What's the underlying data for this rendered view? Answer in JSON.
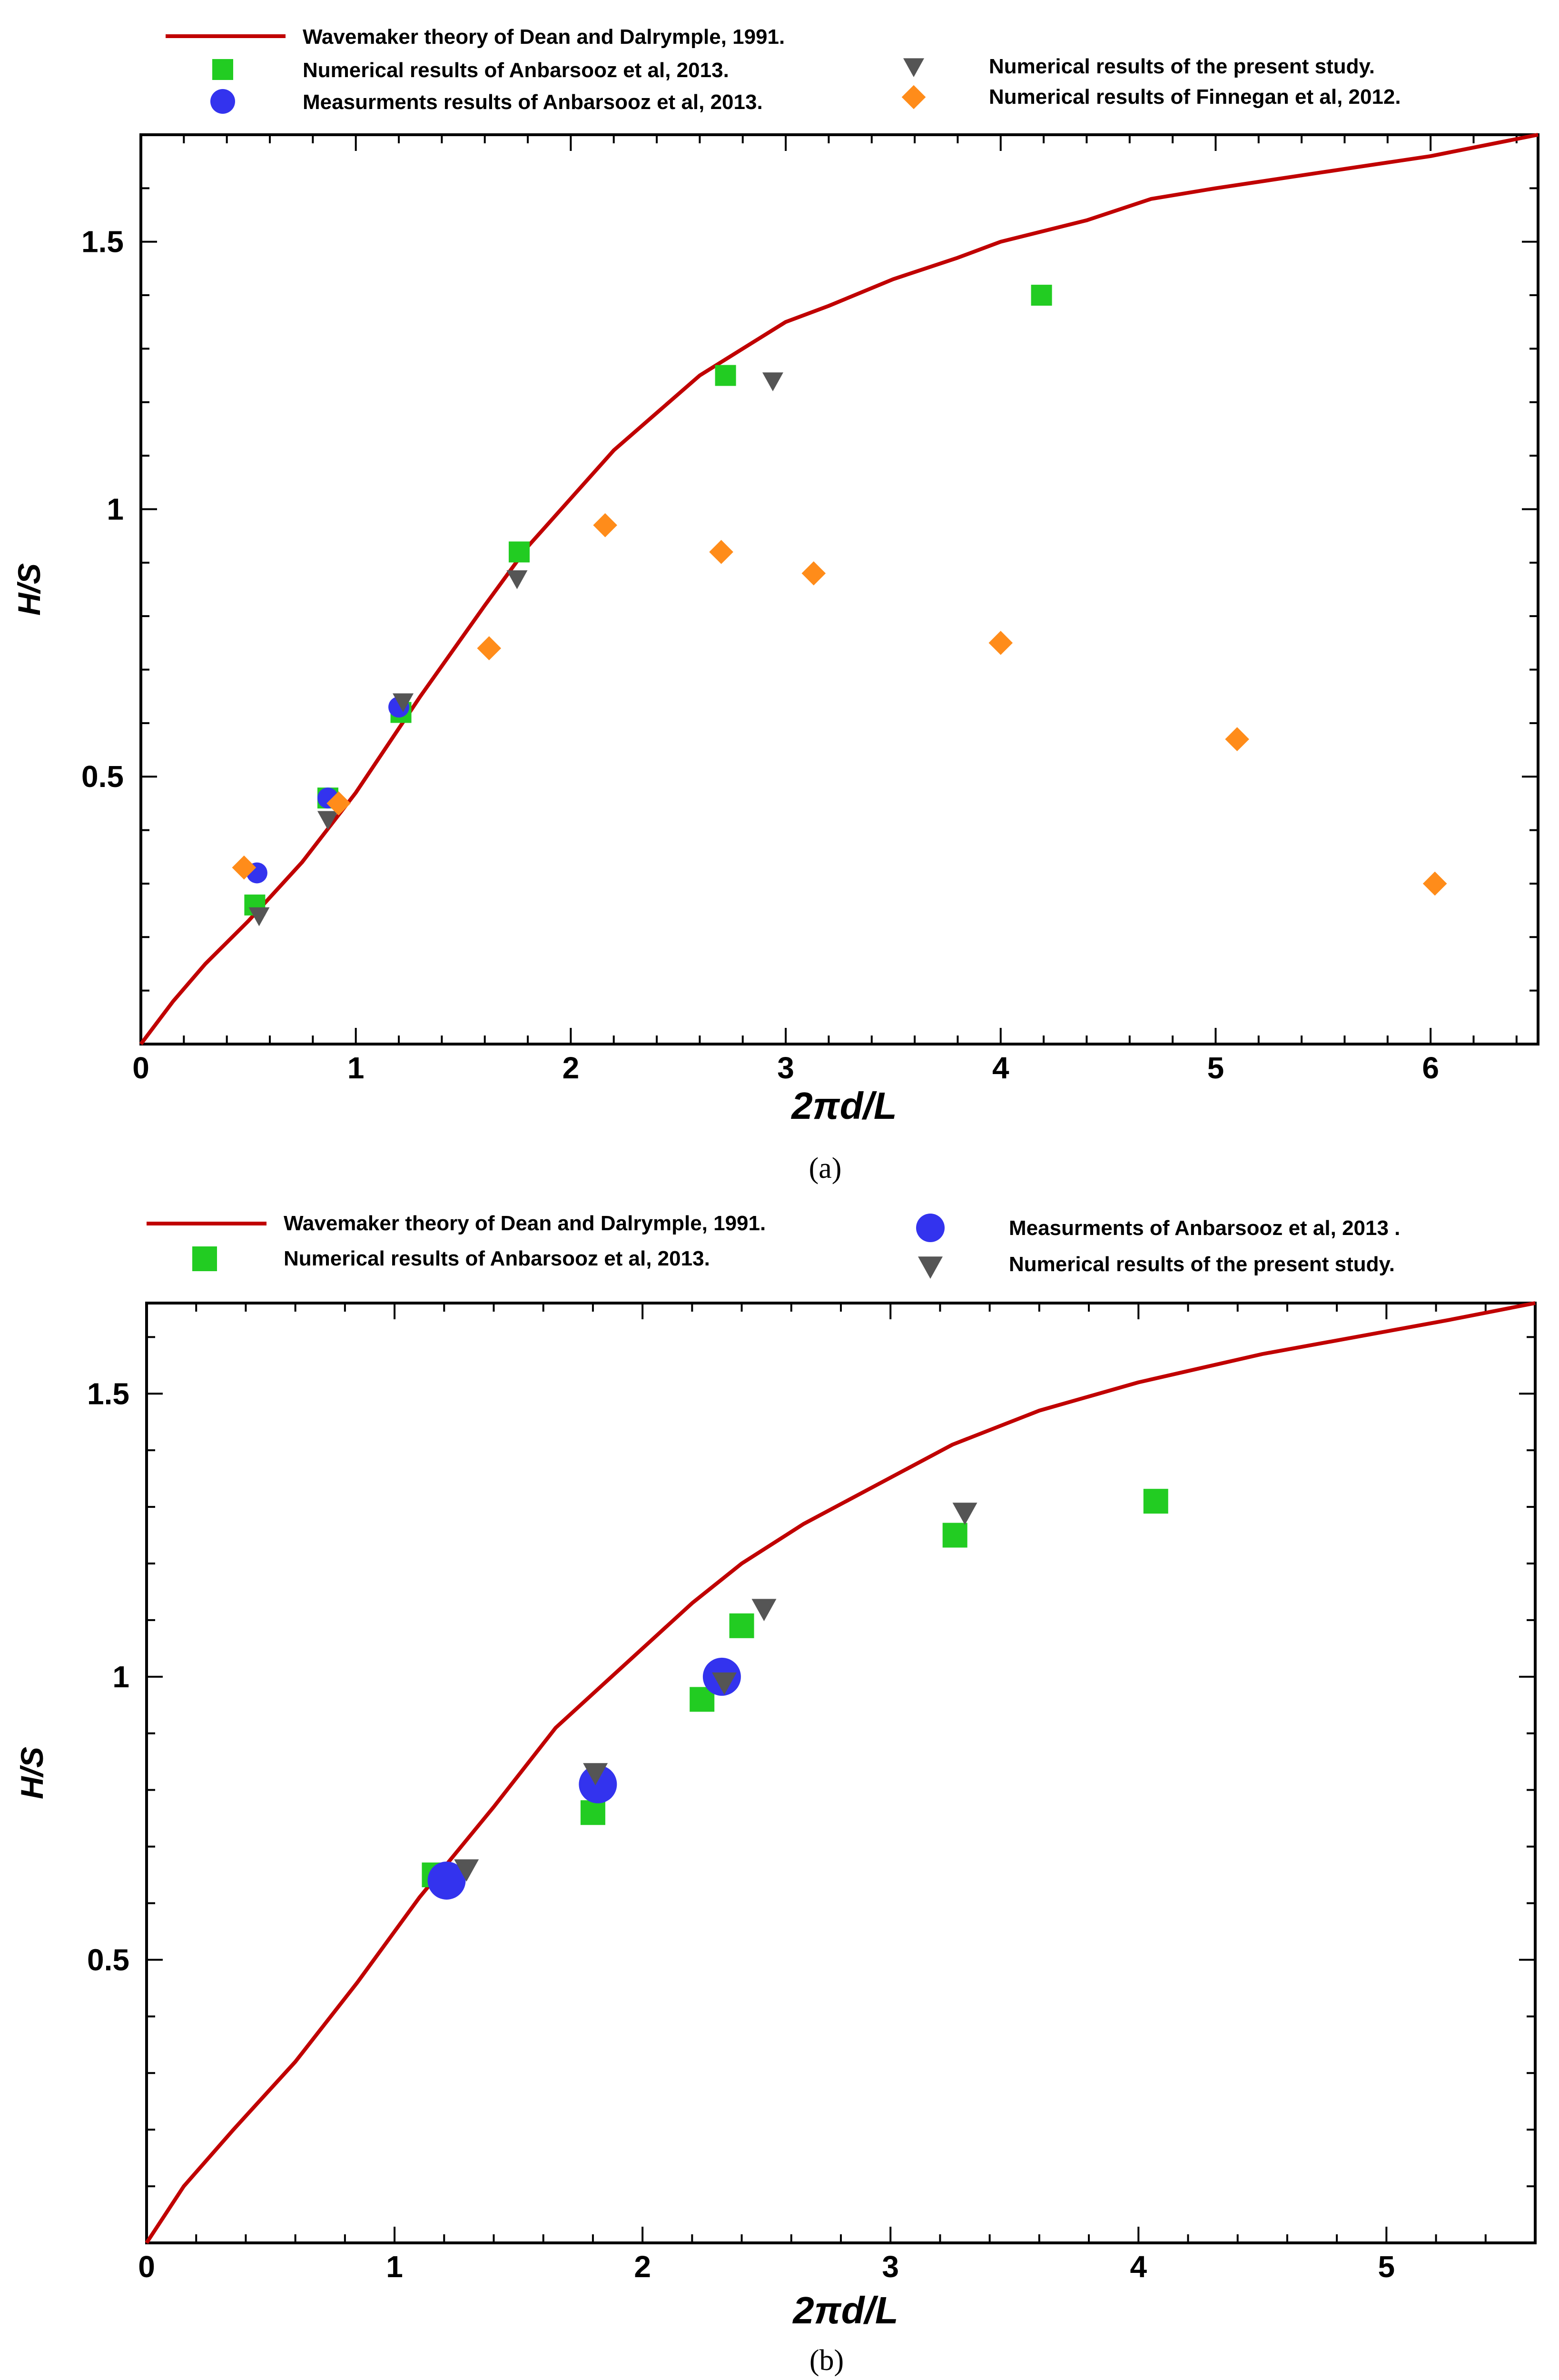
{
  "chart_data": [
    {
      "type": "scatter",
      "panel": "a",
      "caption": "(a)",
      "xlabel": "2πd/L",
      "ylabel": "H/S",
      "xlim": [
        0,
        6.5
      ],
      "ylim": [
        0,
        1.7
      ],
      "xticks": [
        0,
        1,
        2,
        3,
        4,
        5,
        6
      ],
      "yticks": [
        0.5,
        1,
        1.5
      ],
      "xtick_labels": [
        "0",
        "1",
        "2",
        "3",
        "4",
        "5",
        "6"
      ],
      "ytick_labels": [
        "0.5",
        "1",
        "1.5"
      ],
      "series": [
        {
          "name": "Wavemaker theory of Dean and Dalrymple, 1991.",
          "label": "Wavemaker theory of Dean and Dalrymple, 1991.",
          "kind": "line",
          "color": "#c00000",
          "x": [
            0,
            0.15,
            0.3,
            0.5,
            0.75,
            1.0,
            1.3,
            1.6,
            1.8,
            2.0,
            2.2,
            2.4,
            2.6,
            2.8,
            3.0,
            3.2,
            3.5,
            3.8,
            4.0,
            4.4,
            4.7,
            5.0,
            5.5,
            6.0,
            6.5
          ],
          "y": [
            0,
            0.08,
            0.15,
            0.23,
            0.34,
            0.47,
            0.65,
            0.82,
            0.93,
            1.02,
            1.11,
            1.18,
            1.25,
            1.3,
            1.35,
            1.38,
            1.43,
            1.47,
            1.5,
            1.54,
            1.58,
            1.6,
            1.63,
            1.66,
            1.7
          ]
        },
        {
          "name": "Numerical results of Anbarsooz et al, 2013.",
          "label": "Numerical results of Anbarsooz et al, 2013.",
          "kind": "square",
          "color": "#22cc22",
          "x": [
            0.53,
            0.87,
            1.21,
            1.76,
            2.72,
            4.19
          ],
          "y": [
            0.26,
            0.46,
            0.62,
            0.92,
            1.25,
            1.4
          ]
        },
        {
          "name": "Measurments results of Anbarsooz et al, 2013.",
          "label": "Measurments results of Anbarsooz et al, 2013.",
          "kind": "circle",
          "color": "#3333ee",
          "x": [
            0.54,
            0.87,
            1.2
          ],
          "y": [
            0.32,
            0.46,
            0.63
          ]
        },
        {
          "name": "Numerical results of the present study.",
          "label": "Numerical results of the present study.",
          "kind": "triangle",
          "color": "#555555",
          "x": [
            0.55,
            0.87,
            1.22,
            1.75,
            2.94
          ],
          "y": [
            0.24,
            0.42,
            0.64,
            0.87,
            1.24
          ]
        },
        {
          "name": "Numerical results of Finnegan et al, 2012.",
          "label": "Numerical results of Finnegan et al, 2012.",
          "kind": "diamond",
          "color": "#ff8c1a",
          "x": [
            0.48,
            0.92,
            1.62,
            2.16,
            2.7,
            3.13,
            4.0,
            5.1,
            6.02
          ],
          "y": [
            0.33,
            0.45,
            0.74,
            0.97,
            0.92,
            0.88,
            0.75,
            0.57,
            0.3
          ]
        }
      ]
    },
    {
      "type": "scatter",
      "panel": "b",
      "caption": "(b)",
      "xlabel": "2πd/L",
      "ylabel": "H/S",
      "xlim": [
        0,
        5.6
      ],
      "ylim": [
        0,
        1.66
      ],
      "xticks": [
        0,
        1,
        2,
        3,
        4,
        5
      ],
      "yticks": [
        0.5,
        1,
        1.5
      ],
      "xtick_labels": [
        "0",
        "1",
        "2",
        "3",
        "4",
        "5"
      ],
      "ytick_labels": [
        "0.5",
        "1",
        "1.5"
      ],
      "series": [
        {
          "name": "Wavemaker theory of Dean and Dalrymple, 1991.",
          "label": "Wavemaker theory of Dean and Dalrymple, 1991.",
          "kind": "line",
          "color": "#c00000",
          "x": [
            0,
            0.15,
            0.35,
            0.6,
            0.85,
            1.1,
            1.4,
            1.65,
            2.0,
            2.2,
            2.4,
            2.65,
            2.95,
            3.25,
            3.6,
            4.0,
            4.5,
            5.0,
            5.25,
            5.6
          ],
          "y": [
            0,
            0.1,
            0.2,
            0.32,
            0.46,
            0.61,
            0.77,
            0.91,
            1.05,
            1.13,
            1.2,
            1.27,
            1.34,
            1.41,
            1.47,
            1.52,
            1.57,
            1.61,
            1.63,
            1.66
          ]
        },
        {
          "name": "Numerical results of Anbarsooz et al, 2013.",
          "label": "Numerical results of Anbarsooz et al, 2013.",
          "kind": "square",
          "color": "#22cc22",
          "x": [
            1.16,
            1.8,
            2.24,
            2.4,
            3.26,
            4.07
          ],
          "y": [
            0.65,
            0.76,
            0.96,
            1.09,
            1.25,
            1.31
          ]
        },
        {
          "name": "Measurments of Anbarsooz et al, 2013 .",
          "label": "Measurments of Anbarsooz et al, 2013 .",
          "kind": "circle",
          "color": "#3333ee",
          "x": [
            1.21,
            1.82,
            2.32
          ],
          "y": [
            0.64,
            0.81,
            1.0
          ]
        },
        {
          "name": "Numerical results of the present study.",
          "label": "Numerical results of the present study.",
          "kind": "triangle",
          "color": "#555555",
          "x": [
            1.29,
            1.81,
            2.33,
            2.49,
            3.3
          ],
          "y": [
            0.66,
            0.83,
            0.99,
            1.12,
            1.29
          ]
        }
      ]
    }
  ]
}
